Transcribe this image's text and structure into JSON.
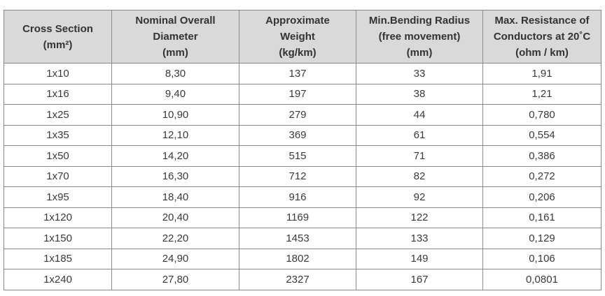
{
  "table": {
    "headers": [
      [
        "Cross Section",
        "(mm²)"
      ],
      [
        "Nominal Overall",
        "Diameter",
        "(mm)"
      ],
      [
        "Approximate",
        "Weight",
        "(kg/km)"
      ],
      [
        "Min.Bending Radius",
        "(free movement)",
        "(mm)"
      ],
      [
        "Max. Resistance of",
        "Conductors at 20˚C",
        "(ohm / km)"
      ]
    ],
    "rows": [
      [
        "1x10",
        "8,30",
        "137",
        "33",
        "1,91"
      ],
      [
        "1x16",
        "9,40",
        "197",
        "38",
        "1,21"
      ],
      [
        "1x25",
        "10,90",
        "279",
        "44",
        "0,780"
      ],
      [
        "1x35",
        "12,10",
        "369",
        "61",
        "0,554"
      ],
      [
        "1x50",
        "14,20",
        "515",
        "71",
        "0,386"
      ],
      [
        "1x70",
        "16,30",
        "712",
        "82",
        "0,272"
      ],
      [
        "1x95",
        "18,40",
        "916",
        "92",
        "0,206"
      ],
      [
        "1x120",
        "20,40",
        "1169",
        "122",
        "0,161"
      ],
      [
        "1x150",
        "22,20",
        "1453",
        "133",
        "0,129"
      ],
      [
        "1x185",
        "24,90",
        "1802",
        "149",
        "0,106"
      ],
      [
        "1x240",
        "27,80",
        "2327",
        "167",
        "0,0801"
      ]
    ]
  },
  "colors": {
    "header_bg": "#d9d9d9",
    "border": "#8a8a8a",
    "text": "#333333"
  }
}
